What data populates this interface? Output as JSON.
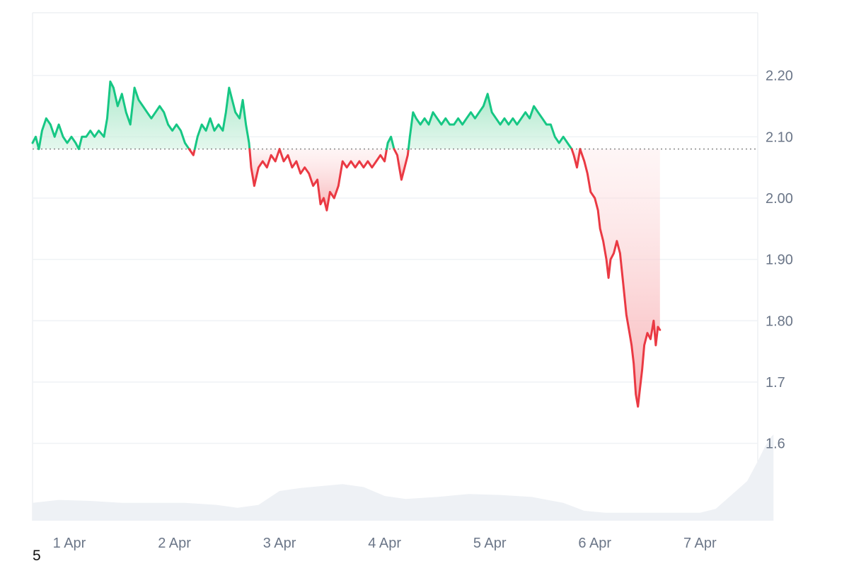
{
  "chart_data": {
    "type": "line",
    "baseline": 2.08,
    "ylim": [
      1.5,
      2.3
    ],
    "yticks": [
      {
        "value": 2.2,
        "label": "2.20"
      },
      {
        "value": 2.1,
        "label": "2.10"
      },
      {
        "value": 2.0,
        "label": "2.00"
      },
      {
        "value": 1.9,
        "label": "1.90"
      },
      {
        "value": 1.8,
        "label": "1.80"
      },
      {
        "value": 1.7,
        "label": "1.7"
      },
      {
        "value": 1.6,
        "label": "1.6"
      }
    ],
    "xlim": [
      0.65,
      7.55
    ],
    "xticks": [
      {
        "value": 1,
        "label": "1 Apr"
      },
      {
        "value": 2,
        "label": "2 Apr"
      },
      {
        "value": 3,
        "label": "3 Apr"
      },
      {
        "value": 4,
        "label": "4 Apr"
      },
      {
        "value": 5,
        "label": "5 Apr"
      },
      {
        "value": 6,
        "label": "6 Apr"
      },
      {
        "value": 7,
        "label": "7 Apr"
      }
    ],
    "series": [
      {
        "points": [
          [
            0.65,
            2.09
          ],
          [
            0.68,
            2.1
          ],
          [
            0.71,
            2.08
          ],
          [
            0.74,
            2.11
          ],
          [
            0.78,
            2.13
          ],
          [
            0.82,
            2.12
          ],
          [
            0.86,
            2.1
          ],
          [
            0.9,
            2.12
          ],
          [
            0.94,
            2.1
          ],
          [
            0.98,
            2.09
          ],
          [
            1.02,
            2.1
          ],
          [
            1.06,
            2.09
          ],
          [
            1.09,
            2.08
          ],
          [
            1.12,
            2.1
          ],
          [
            1.16,
            2.1
          ],
          [
            1.2,
            2.11
          ],
          [
            1.24,
            2.1
          ],
          [
            1.28,
            2.11
          ],
          [
            1.33,
            2.1
          ],
          [
            1.36,
            2.13
          ],
          [
            1.39,
            2.19
          ],
          [
            1.42,
            2.18
          ],
          [
            1.46,
            2.15
          ],
          [
            1.5,
            2.17
          ],
          [
            1.54,
            2.14
          ],
          [
            1.58,
            2.12
          ],
          [
            1.62,
            2.18
          ],
          [
            1.66,
            2.16
          ],
          [
            1.7,
            2.15
          ],
          [
            1.74,
            2.14
          ],
          [
            1.78,
            2.13
          ],
          [
            1.82,
            2.14
          ],
          [
            1.86,
            2.15
          ],
          [
            1.9,
            2.14
          ],
          [
            1.94,
            2.12
          ],
          [
            1.98,
            2.11
          ],
          [
            2.02,
            2.12
          ],
          [
            2.06,
            2.11
          ],
          [
            2.1,
            2.09
          ],
          [
            2.14,
            2.08
          ],
          [
            2.18,
            2.07
          ],
          [
            2.22,
            2.1
          ],
          [
            2.26,
            2.12
          ],
          [
            2.3,
            2.11
          ],
          [
            2.34,
            2.13
          ],
          [
            2.38,
            2.11
          ],
          [
            2.42,
            2.12
          ],
          [
            2.46,
            2.11
          ],
          [
            2.49,
            2.14
          ],
          [
            2.52,
            2.18
          ],
          [
            2.55,
            2.16
          ],
          [
            2.58,
            2.14
          ],
          [
            2.62,
            2.13
          ],
          [
            2.65,
            2.16
          ],
          [
            2.68,
            2.12
          ],
          [
            2.71,
            2.09
          ],
          [
            2.73,
            2.05
          ],
          [
            2.76,
            2.02
          ],
          [
            2.8,
            2.05
          ],
          [
            2.84,
            2.06
          ],
          [
            2.88,
            2.05
          ],
          [
            2.92,
            2.07
          ],
          [
            2.96,
            2.06
          ],
          [
            3.0,
            2.08
          ],
          [
            3.04,
            2.06
          ],
          [
            3.08,
            2.07
          ],
          [
            3.12,
            2.05
          ],
          [
            3.16,
            2.06
          ],
          [
            3.2,
            2.04
          ],
          [
            3.24,
            2.05
          ],
          [
            3.28,
            2.04
          ],
          [
            3.32,
            2.02
          ],
          [
            3.36,
            2.03
          ],
          [
            3.39,
            1.99
          ],
          [
            3.42,
            2.0
          ],
          [
            3.45,
            1.98
          ],
          [
            3.48,
            2.01
          ],
          [
            3.52,
            2.0
          ],
          [
            3.56,
            2.02
          ],
          [
            3.6,
            2.06
          ],
          [
            3.64,
            2.05
          ],
          [
            3.68,
            2.06
          ],
          [
            3.72,
            2.05
          ],
          [
            3.76,
            2.06
          ],
          [
            3.8,
            2.05
          ],
          [
            3.84,
            2.06
          ],
          [
            3.88,
            2.05
          ],
          [
            3.92,
            2.06
          ],
          [
            3.96,
            2.07
          ],
          [
            4.0,
            2.06
          ],
          [
            4.03,
            2.09
          ],
          [
            4.06,
            2.1
          ],
          [
            4.09,
            2.08
          ],
          [
            4.12,
            2.07
          ],
          [
            4.14,
            2.05
          ],
          [
            4.16,
            2.03
          ],
          [
            4.19,
            2.05
          ],
          [
            4.22,
            2.07
          ],
          [
            4.24,
            2.1
          ],
          [
            4.27,
            2.14
          ],
          [
            4.3,
            2.13
          ],
          [
            4.34,
            2.12
          ],
          [
            4.38,
            2.13
          ],
          [
            4.42,
            2.12
          ],
          [
            4.46,
            2.14
          ],
          [
            4.5,
            2.13
          ],
          [
            4.54,
            2.12
          ],
          [
            4.58,
            2.13
          ],
          [
            4.62,
            2.12
          ],
          [
            4.66,
            2.12
          ],
          [
            4.7,
            2.13
          ],
          [
            4.74,
            2.12
          ],
          [
            4.78,
            2.13
          ],
          [
            4.82,
            2.14
          ],
          [
            4.86,
            2.13
          ],
          [
            4.9,
            2.14
          ],
          [
            4.94,
            2.15
          ],
          [
            4.98,
            2.17
          ],
          [
            5.02,
            2.14
          ],
          [
            5.06,
            2.13
          ],
          [
            5.1,
            2.12
          ],
          [
            5.14,
            2.13
          ],
          [
            5.18,
            2.12
          ],
          [
            5.22,
            2.13
          ],
          [
            5.26,
            2.12
          ],
          [
            5.3,
            2.13
          ],
          [
            5.34,
            2.14
          ],
          [
            5.38,
            2.13
          ],
          [
            5.42,
            2.15
          ],
          [
            5.46,
            2.14
          ],
          [
            5.5,
            2.13
          ],
          [
            5.54,
            2.12
          ],
          [
            5.58,
            2.12
          ],
          [
            5.62,
            2.1
          ],
          [
            5.66,
            2.09
          ],
          [
            5.7,
            2.1
          ],
          [
            5.74,
            2.09
          ],
          [
            5.78,
            2.08
          ],
          [
            5.8,
            2.07
          ],
          [
            5.83,
            2.05
          ],
          [
            5.86,
            2.08
          ],
          [
            5.9,
            2.06
          ],
          [
            5.93,
            2.04
          ],
          [
            5.96,
            2.01
          ],
          [
            6.0,
            2.0
          ],
          [
            6.03,
            1.98
          ],
          [
            6.05,
            1.95
          ],
          [
            6.08,
            1.93
          ],
          [
            6.11,
            1.9
          ],
          [
            6.13,
            1.87
          ],
          [
            6.15,
            1.9
          ],
          [
            6.18,
            1.91
          ],
          [
            6.21,
            1.93
          ],
          [
            6.24,
            1.91
          ],
          [
            6.27,
            1.86
          ],
          [
            6.3,
            1.81
          ],
          [
            6.33,
            1.78
          ],
          [
            6.35,
            1.76
          ],
          [
            6.37,
            1.73
          ],
          [
            6.39,
            1.68
          ],
          [
            6.41,
            1.66
          ],
          [
            6.43,
            1.69
          ],
          [
            6.45,
            1.72
          ],
          [
            6.47,
            1.76
          ],
          [
            6.5,
            1.78
          ],
          [
            6.53,
            1.77
          ],
          [
            6.56,
            1.8
          ],
          [
            6.58,
            1.76
          ],
          [
            6.6,
            1.79
          ],
          [
            6.62,
            1.785
          ]
        ]
      }
    ],
    "volume": [
      [
        0.65,
        0.018
      ],
      [
        0.9,
        0.021
      ],
      [
        1.2,
        0.02
      ],
      [
        1.5,
        0.018
      ],
      [
        1.8,
        0.018
      ],
      [
        2.1,
        0.018
      ],
      [
        2.4,
        0.016
      ],
      [
        2.6,
        0.013
      ],
      [
        2.8,
        0.016
      ],
      [
        3.0,
        0.03
      ],
      [
        3.2,
        0.033
      ],
      [
        3.4,
        0.035
      ],
      [
        3.6,
        0.037
      ],
      [
        3.8,
        0.034
      ],
      [
        4.0,
        0.025
      ],
      [
        4.2,
        0.022
      ],
      [
        4.5,
        0.024
      ],
      [
        4.8,
        0.027
      ],
      [
        5.1,
        0.026
      ],
      [
        5.4,
        0.024
      ],
      [
        5.7,
        0.018
      ],
      [
        5.9,
        0.01
      ],
      [
        6.1,
        0.008
      ],
      [
        6.4,
        0.008
      ],
      [
        6.7,
        0.008
      ],
      [
        7.0,
        0.008
      ],
      [
        7.15,
        0.012
      ],
      [
        7.3,
        0.026
      ],
      [
        7.45,
        0.04
      ],
      [
        7.55,
        0.06
      ],
      [
        7.62,
        0.075
      ],
      [
        7.68,
        0.085
      ],
      [
        7.7,
        0.087
      ]
    ],
    "footnote": "5",
    "colors": {
      "up": "#16c784",
      "down": "#ea3943",
      "up_fill": "#d1f2e1",
      "down_fill": "#fde4e5",
      "grid": "#eff2f5",
      "volume": "#eef1f5",
      "baseline": "#888888",
      "axis_text": "#6b7688"
    }
  }
}
